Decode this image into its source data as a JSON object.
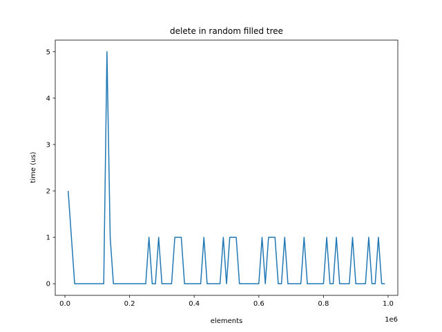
{
  "chart_data": {
    "type": "line",
    "title": "delete in random filled tree",
    "xlabel": "elements",
    "ylabel": "time (us)",
    "x_offset_label": "1e6",
    "x_scale": 1000000,
    "xlim": [
      -30000,
      1030000
    ],
    "ylim": [
      -0.25,
      5.25
    ],
    "grid": false,
    "x_ticks": [
      0,
      200000,
      400000,
      600000,
      800000,
      1000000
    ],
    "x_tick_labels": [
      "0.0",
      "0.2",
      "0.4",
      "0.6",
      "0.8",
      "1.0"
    ],
    "y_ticks": [
      0,
      1,
      2,
      3,
      4,
      5
    ],
    "y_tick_labels": [
      "0",
      "1",
      "2",
      "3",
      "4",
      "5"
    ],
    "series": [
      {
        "color": "#1f77b4",
        "x": [
          10000,
          20000,
          30000,
          40000,
          50000,
          60000,
          70000,
          80000,
          90000,
          100000,
          110000,
          120000,
          130000,
          140000,
          150000,
          160000,
          170000,
          180000,
          190000,
          200000,
          210000,
          220000,
          230000,
          240000,
          250000,
          260000,
          270000,
          280000,
          290000,
          300000,
          310000,
          320000,
          330000,
          340000,
          350000,
          360000,
          370000,
          380000,
          390000,
          400000,
          410000,
          420000,
          430000,
          440000,
          450000,
          460000,
          470000,
          480000,
          490000,
          500000,
          510000,
          520000,
          530000,
          540000,
          550000,
          560000,
          570000,
          580000,
          590000,
          600000,
          610000,
          620000,
          630000,
          640000,
          650000,
          660000,
          670000,
          680000,
          690000,
          700000,
          710000,
          720000,
          730000,
          740000,
          750000,
          760000,
          770000,
          780000,
          790000,
          800000,
          810000,
          820000,
          830000,
          840000,
          850000,
          860000,
          870000,
          880000,
          890000,
          900000,
          910000,
          920000,
          930000,
          940000,
          950000,
          960000,
          970000,
          980000,
          990000
        ],
        "y": [
          2,
          1,
          0,
          0,
          0,
          0,
          0,
          0,
          0,
          0,
          0,
          0,
          5,
          1,
          0,
          0,
          0,
          0,
          0,
          0,
          0,
          0,
          0,
          0,
          0,
          1,
          0,
          0,
          1,
          0,
          0,
          0,
          0,
          1,
          1,
          1,
          0,
          0,
          0,
          0,
          0,
          0,
          1,
          0,
          0,
          0,
          0,
          0,
          1,
          0,
          1,
          1,
          1,
          0,
          0,
          0,
          0,
          0,
          0,
          0,
          1,
          0,
          1,
          1,
          1,
          0,
          0,
          1,
          0,
          0,
          0,
          0,
          0,
          1,
          0,
          0,
          0,
          0,
          0,
          0,
          1,
          0,
          0,
          1,
          0,
          0,
          0,
          0,
          1,
          0,
          0,
          0,
          0,
          1,
          0,
          0,
          1,
          0,
          0
        ]
      }
    ]
  }
}
